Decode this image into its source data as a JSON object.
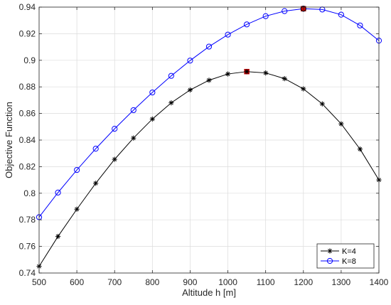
{
  "chart_data": {
    "type": "line",
    "xlabel": "Altitude h [m]",
    "ylabel": "Objective Function",
    "xlim": [
      500,
      1400
    ],
    "ylim": [
      0.74,
      0.94
    ],
    "xticks": [
      500,
      600,
      700,
      800,
      900,
      1000,
      1100,
      1200,
      1300,
      1400
    ],
    "yticks": [
      0.74,
      0.76,
      0.78,
      0.8,
      0.82,
      0.84,
      0.86,
      0.88,
      0.9,
      0.92,
      0.94
    ],
    "xtick_labels": [
      "500",
      "600",
      "700",
      "800",
      "900",
      "1000",
      "1100",
      "1200",
      "1300",
      "1400"
    ],
    "ytick_labels": [
      "0.74",
      "0.76",
      "0.78",
      "0.8",
      "0.82",
      "0.84",
      "0.86",
      "0.88",
      "0.9",
      "0.92",
      "0.94"
    ],
    "grid": true,
    "legend_position": "bottom-right",
    "x": [
      500,
      550,
      600,
      650,
      700,
      750,
      800,
      850,
      900,
      950,
      1000,
      1050,
      1100,
      1150,
      1200,
      1250,
      1300,
      1350,
      1400
    ],
    "series": [
      {
        "name": "K=4",
        "color": "#000000",
        "marker": "asterisk",
        "values": [
          0.745,
          0.7675,
          0.788,
          0.8075,
          0.8255,
          0.8415,
          0.8558,
          0.868,
          0.8777,
          0.885,
          0.8897,
          0.8915,
          0.8905,
          0.8862,
          0.8785,
          0.8672,
          0.8522,
          0.8332,
          0.81
        ]
      },
      {
        "name": "K=8",
        "color": "#0000ff",
        "marker": "circle",
        "values": [
          0.782,
          0.8005,
          0.8175,
          0.8335,
          0.8485,
          0.8625,
          0.8758,
          0.8883,
          0.8998,
          0.9103,
          0.9193,
          0.927,
          0.9332,
          0.937,
          0.9388,
          0.9382,
          0.9343,
          0.9262,
          0.9148
        ]
      }
    ],
    "highlights": [
      {
        "series": "K=4",
        "x": 1050,
        "y": 0.8915,
        "color": "#cc0000",
        "marker": "square"
      },
      {
        "series": "K=8",
        "x": 1200,
        "y": 0.9388,
        "color": "#cc0000",
        "marker": "square"
      }
    ]
  }
}
